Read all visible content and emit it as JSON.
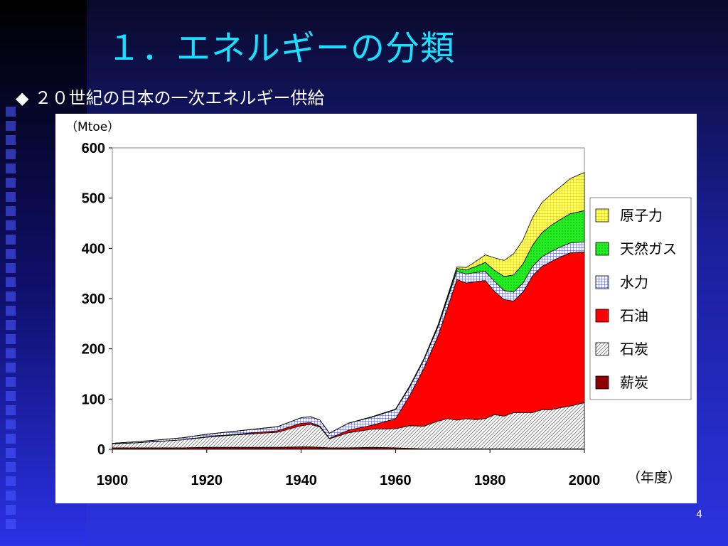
{
  "slide": {
    "title": "１．エネルギーの分類",
    "bullet_icon": "diamond-icon",
    "subtitle": "２０世紀の日本の一次エネルギー供給",
    "page_number": "4"
  },
  "chart_data": {
    "type": "area",
    "stacked": true,
    "title": "",
    "xlabel": "（年度）",
    "ylabel": "（Mtoe）",
    "xlim": [
      1900,
      2000
    ],
    "ylim": [
      0,
      600
    ],
    "xticks": [
      "1900",
      "1920",
      "1940",
      "1960",
      "1980",
      "2000"
    ],
    "yticks": [
      "0",
      "100",
      "200",
      "300",
      "400",
      "500",
      "600"
    ],
    "grid": false,
    "legend_position": "right",
    "x": [
      1900,
      1905,
      1910,
      1915,
      1920,
      1925,
      1930,
      1935,
      1940,
      1942,
      1944,
      1946,
      1950,
      1955,
      1960,
      1963,
      1966,
      1969,
      1971,
      1973,
      1975,
      1977,
      1979,
      1981,
      1983,
      1985,
      1987,
      1989,
      1991,
      1993,
      1995,
      1997,
      2000
    ],
    "series": [
      {
        "name": "薪炭",
        "color": "#8b0000",
        "pattern": "solid",
        "values": [
          3,
          3,
          3,
          3,
          4,
          4,
          4,
          4,
          5,
          5,
          4,
          3,
          3,
          4,
          3,
          2,
          1,
          1,
          1,
          1,
          1,
          1,
          1,
          1,
          1,
          1,
          1,
          1,
          1,
          1,
          1,
          1,
          1
        ]
      },
      {
        "name": "石炭",
        "color": "#d8d8d8",
        "pattern": "hatch",
        "values": [
          8,
          10,
          13,
          16,
          20,
          24,
          27,
          30,
          42,
          45,
          40,
          18,
          30,
          36,
          38,
          45,
          45,
          55,
          60,
          57,
          60,
          58,
          60,
          68,
          65,
          72,
          72,
          72,
          78,
          78,
          82,
          85,
          92
        ]
      },
      {
        "name": "石油",
        "color": "#ff0000",
        "pattern": "solid",
        "values": [
          0,
          0,
          0,
          0,
          1,
          1,
          2,
          3,
          5,
          3,
          2,
          1,
          5,
          8,
          20,
          60,
          115,
          170,
          220,
          280,
          270,
          275,
          275,
          245,
          232,
          222,
          240,
          272,
          285,
          295,
          300,
          305,
          300
        ]
      },
      {
        "name": "水力",
        "color": "#22e5f5",
        "pattern": "grid",
        "values": [
          1,
          2,
          3,
          4,
          5,
          6,
          7,
          8,
          11,
          12,
          12,
          10,
          14,
          16,
          18,
          17,
          17,
          18,
          18,
          16,
          18,
          18,
          18,
          20,
          18,
          18,
          18,
          19,
          19,
          20,
          20,
          20,
          20
        ]
      },
      {
        "name": "天然ガス",
        "color": "#22ee22",
        "pattern": "dots",
        "values": [
          0,
          0,
          0,
          0,
          0,
          0,
          0,
          0,
          0,
          0,
          0,
          0,
          0,
          1,
          1,
          2,
          2,
          3,
          4,
          6,
          8,
          12,
          18,
          22,
          28,
          34,
          38,
          42,
          48,
          52,
          55,
          58,
          62
        ]
      },
      {
        "name": "原子力",
        "color": "#ffff66",
        "pattern": "grid",
        "values": [
          0,
          0,
          0,
          0,
          0,
          0,
          0,
          0,
          0,
          0,
          0,
          0,
          0,
          0,
          0,
          0,
          0,
          1,
          2,
          3,
          5,
          10,
          15,
          25,
          32,
          42,
          48,
          55,
          60,
          62,
          65,
          70,
          76
        ]
      }
    ],
    "legend_order": [
      "原子力",
      "天然ガス",
      "水力",
      "石油",
      "石炭",
      "薪炭"
    ]
  }
}
